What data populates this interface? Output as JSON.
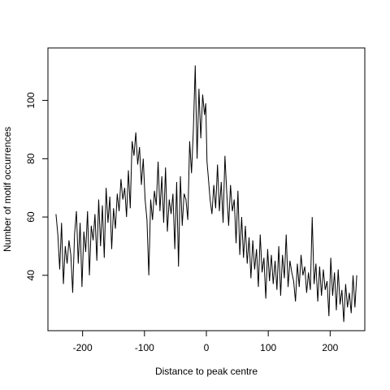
{
  "chart_data": {
    "type": "line",
    "title": "",
    "xlabel": "Distance to peak centre",
    "ylabel": "Number of motif occurrences",
    "xlim": [
      -256,
      256
    ],
    "ylim": [
      21,
      118
    ],
    "xticks": [
      -200,
      -100,
      0,
      100,
      200
    ],
    "xtick_labels": [
      "-200",
      "-100",
      "0",
      "100",
      "200"
    ],
    "yticks": [
      40,
      60,
      80,
      100
    ],
    "ytick_labels": [
      "40",
      "60",
      "80",
      "100"
    ],
    "grid": false,
    "legend": "none",
    "line_color": "#000000",
    "series": [
      {
        "x": [
          -243,
          -240,
          -237,
          -234,
          -231,
          -228,
          -225,
          -222,
          -219,
          -216,
          -213,
          -210,
          -207,
          -204,
          -201,
          -198,
          -195,
          -192,
          -189,
          -186,
          -183,
          -180,
          -177,
          -174,
          -171,
          -168,
          -165,
          -162,
          -159,
          -156,
          -153,
          -150,
          -147,
          -144,
          -141,
          -138,
          -135,
          -132,
          -129,
          -126,
          -123,
          -120,
          -117,
          -114,
          -111,
          -108,
          -105,
          -102,
          -99,
          -96,
          -93,
          -90,
          -87,
          -84,
          -81,
          -78,
          -75,
          -72,
          -69,
          -66,
          -63,
          -60,
          -57,
          -54,
          -51,
          -48,
          -45,
          -42,
          -39,
          -36,
          -33,
          -30,
          -27,
          -24,
          -21,
          -18,
          -15,
          -12,
          -9,
          -6,
          -3,
          -1,
          1,
          3,
          6,
          9,
          12,
          15,
          18,
          21,
          24,
          27,
          30,
          33,
          36,
          39,
          42,
          45,
          48,
          51,
          54,
          57,
          60,
          63,
          66,
          69,
          72,
          75,
          78,
          81,
          84,
          87,
          90,
          93,
          96,
          99,
          102,
          105,
          108,
          111,
          114,
          117,
          120,
          123,
          126,
          129,
          132,
          135,
          138,
          141,
          144,
          147,
          150,
          153,
          156,
          159,
          162,
          165,
          168,
          171,
          174,
          177,
          180,
          183,
          186,
          189,
          192,
          195,
          198,
          201,
          204,
          207,
          210,
          213,
          216,
          219,
          222,
          225,
          228,
          231,
          234,
          237,
          240,
          243
        ],
        "values": [
          61,
          54,
          42,
          58,
          37,
          50,
          44,
          52,
          47,
          34,
          54,
          62,
          44,
          58,
          36,
          55,
          48,
          62,
          40,
          57,
          52,
          61,
          45,
          66,
          50,
          64,
          46,
          70,
          58,
          67,
          49,
          63,
          56,
          68,
          62,
          73,
          66,
          70,
          60,
          76,
          63,
          86,
          81,
          89,
          78,
          84,
          71,
          80,
          66,
          59,
          40,
          66,
          59,
          69,
          64,
          79,
          62,
          74,
          58,
          77,
          55,
          66,
          61,
          68,
          49,
          72,
          43,
          74,
          57,
          68,
          66,
          59,
          86,
          75,
          90,
          112,
          80,
          104,
          87,
          102,
          95,
          99,
          79,
          74,
          66,
          61,
          71,
          63,
          78,
          62,
          72,
          58,
          81,
          68,
          57,
          71,
          62,
          66,
          51,
          69,
          47,
          60,
          46,
          57,
          44,
          53,
          39,
          52,
          42,
          49,
          36,
          54,
          41,
          46,
          32,
          49,
          38,
          47,
          37,
          45,
          35,
          50,
          33,
          47,
          39,
          54,
          36,
          45,
          41,
          38,
          31,
          44,
          36,
          47,
          40,
          43,
          34,
          41,
          35,
          60,
          37,
          44,
          31,
          43,
          33,
          42,
          35,
          38,
          26,
          46,
          33,
          41,
          28,
          42,
          30,
          35,
          24,
          37,
          29,
          34,
          27,
          40,
          29,
          40
        ]
      }
    ]
  }
}
